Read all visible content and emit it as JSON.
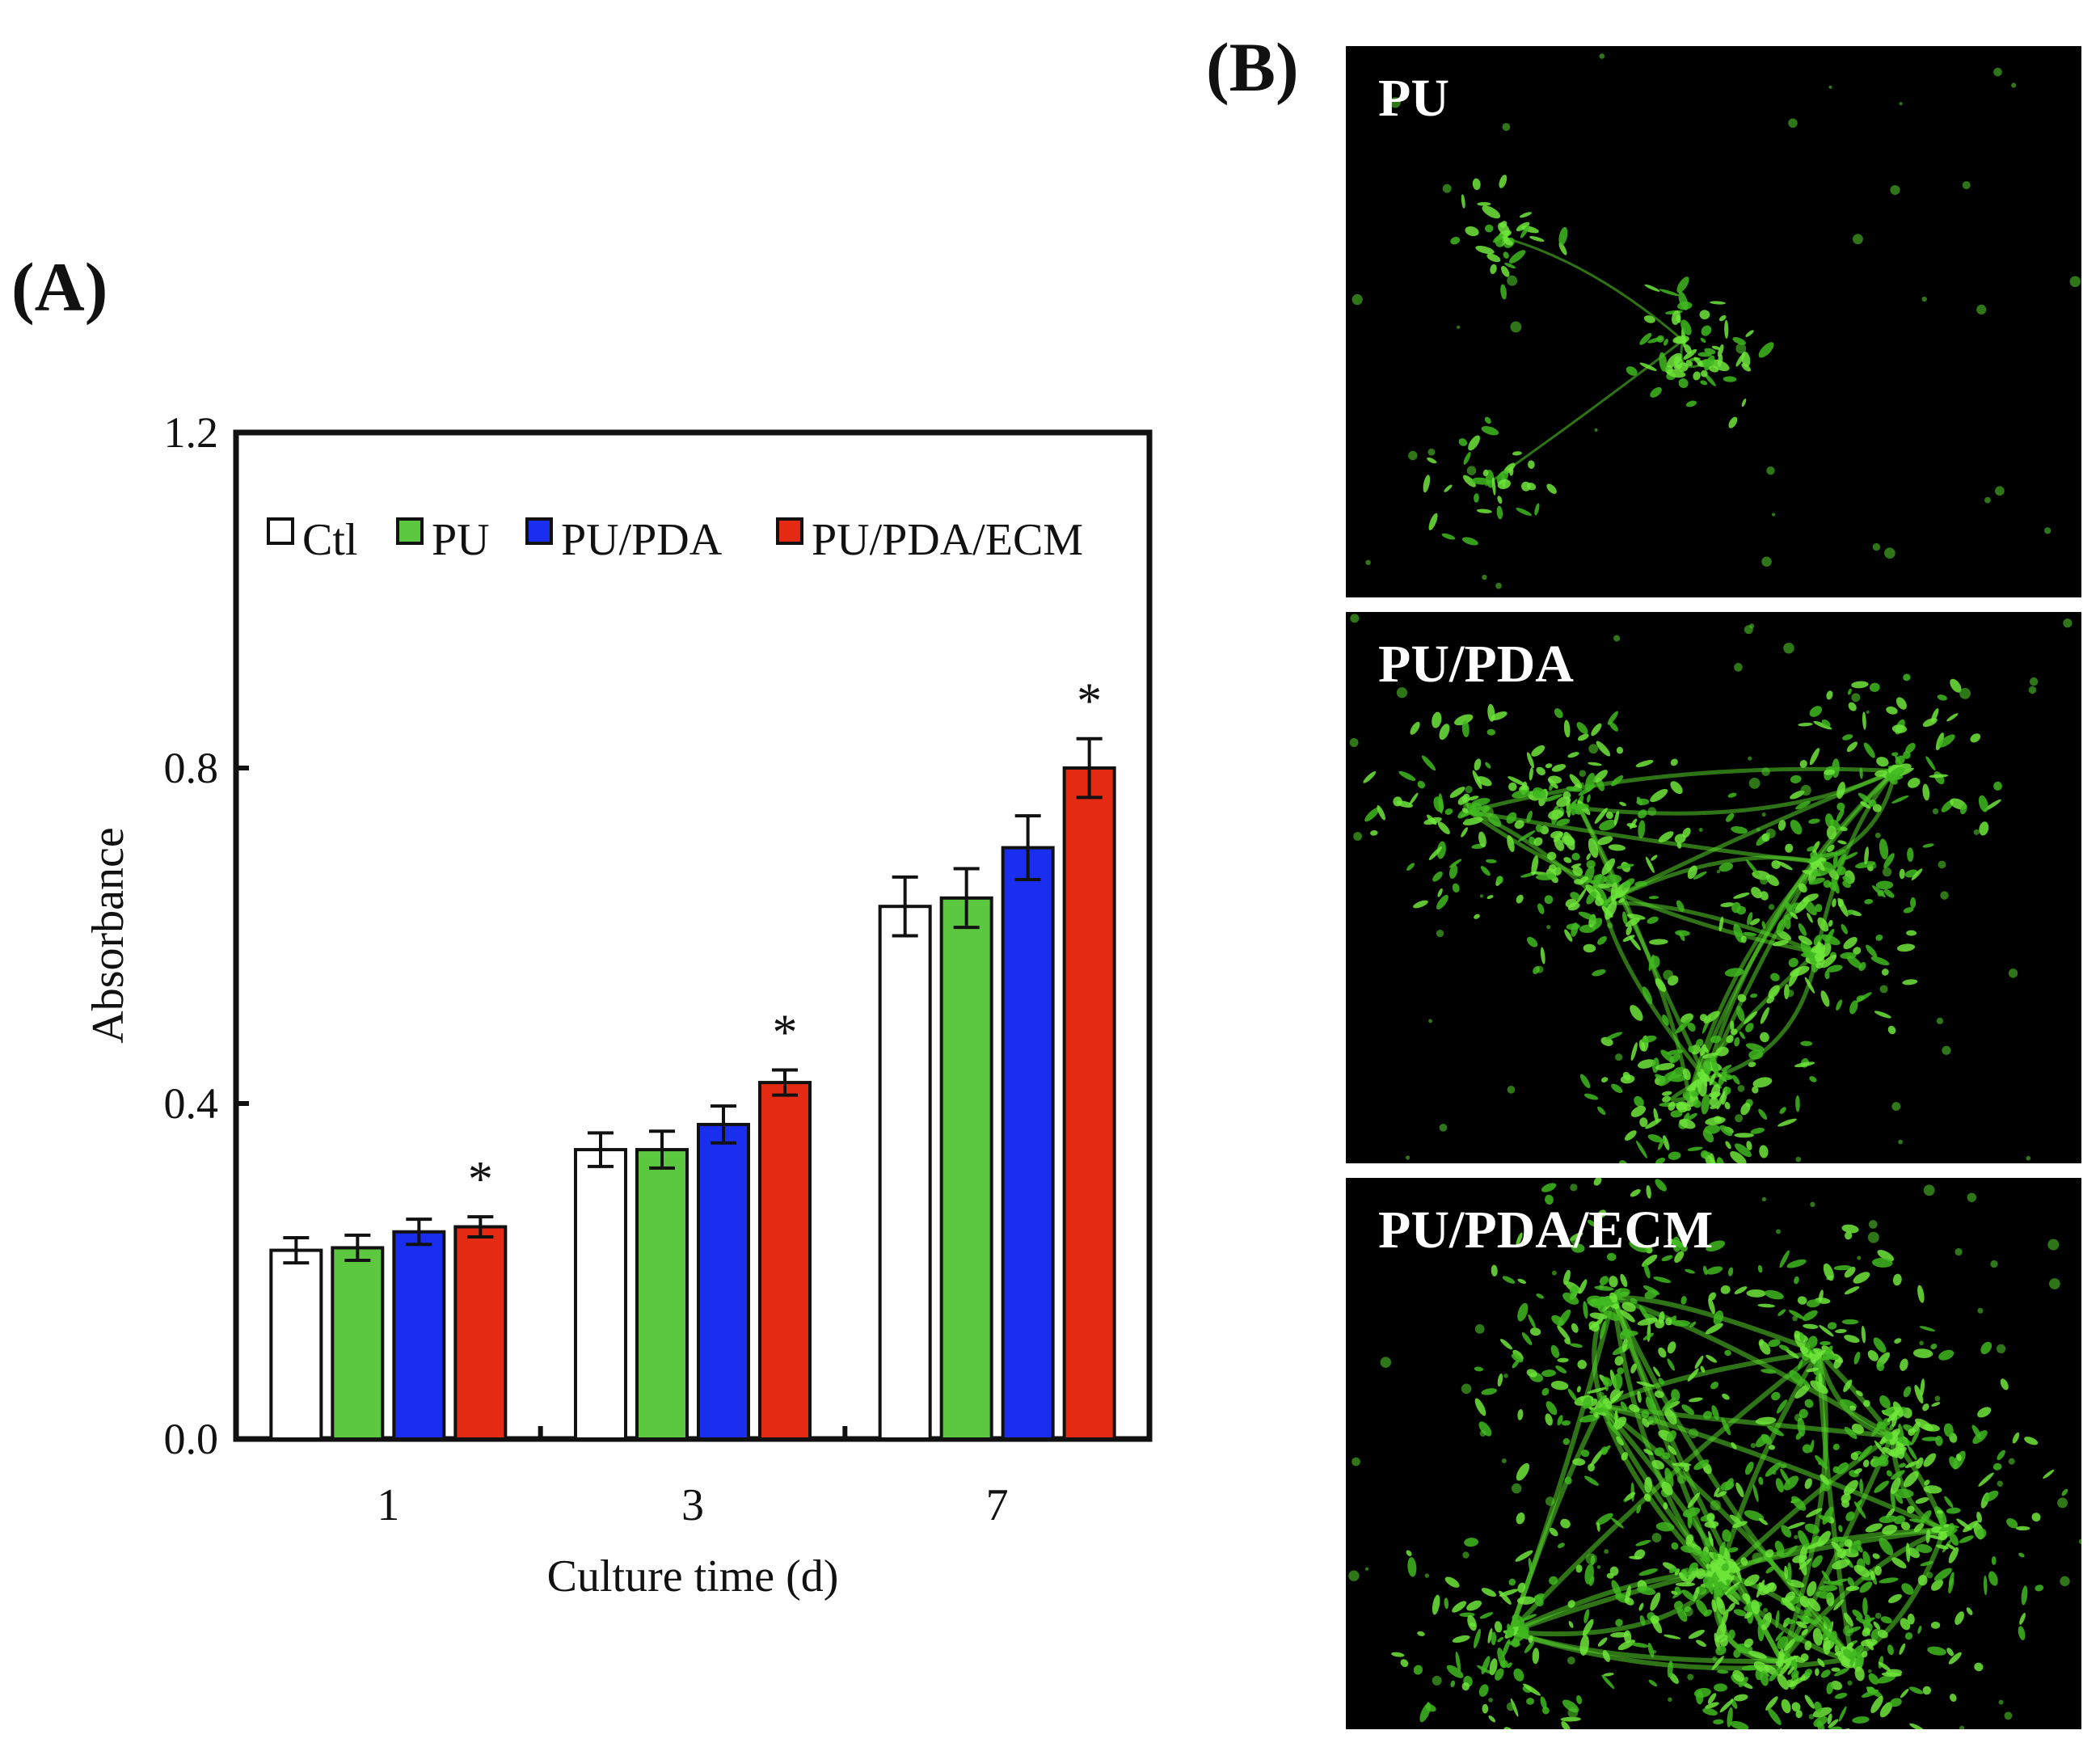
{
  "panels": {
    "a_label": "(A)",
    "b_label": "(B)"
  },
  "chart_data": {
    "type": "bar",
    "categories": [
      "1",
      "3",
      "7"
    ],
    "xlabel": "Culture time (d)",
    "ylabel": "Absorbance",
    "ylim": [
      0,
      1.2
    ],
    "yticks": [
      "0.0",
      "0.4",
      "0.8",
      "1.2"
    ],
    "legend_position": "top",
    "series": [
      {
        "name": "Ctl",
        "color": "#ffffff",
        "values": [
          0.225,
          0.345,
          0.635
        ],
        "errors": [
          0.015,
          0.02,
          0.035
        ]
      },
      {
        "name": "PU",
        "color": "#5cc840",
        "values": [
          0.228,
          0.345,
          0.645
        ],
        "errors": [
          0.015,
          0.022,
          0.035
        ]
      },
      {
        "name": "PU/PDA",
        "color": "#1a2ef0",
        "values": [
          0.247,
          0.375,
          0.705
        ],
        "errors": [
          0.015,
          0.022,
          0.038
        ]
      },
      {
        "name": "PU/PDA/ECM",
        "color": "#e42a12",
        "values": [
          0.253,
          0.425,
          0.8
        ],
        "errors": [
          0.012,
          0.015,
          0.035
        ]
      }
    ],
    "annotations": [
      "*",
      "*",
      "*"
    ]
  },
  "micrographs": [
    {
      "label": "PU"
    },
    {
      "label": "PU/PDA"
    },
    {
      "label": "PU/PDA/ECM"
    }
  ]
}
